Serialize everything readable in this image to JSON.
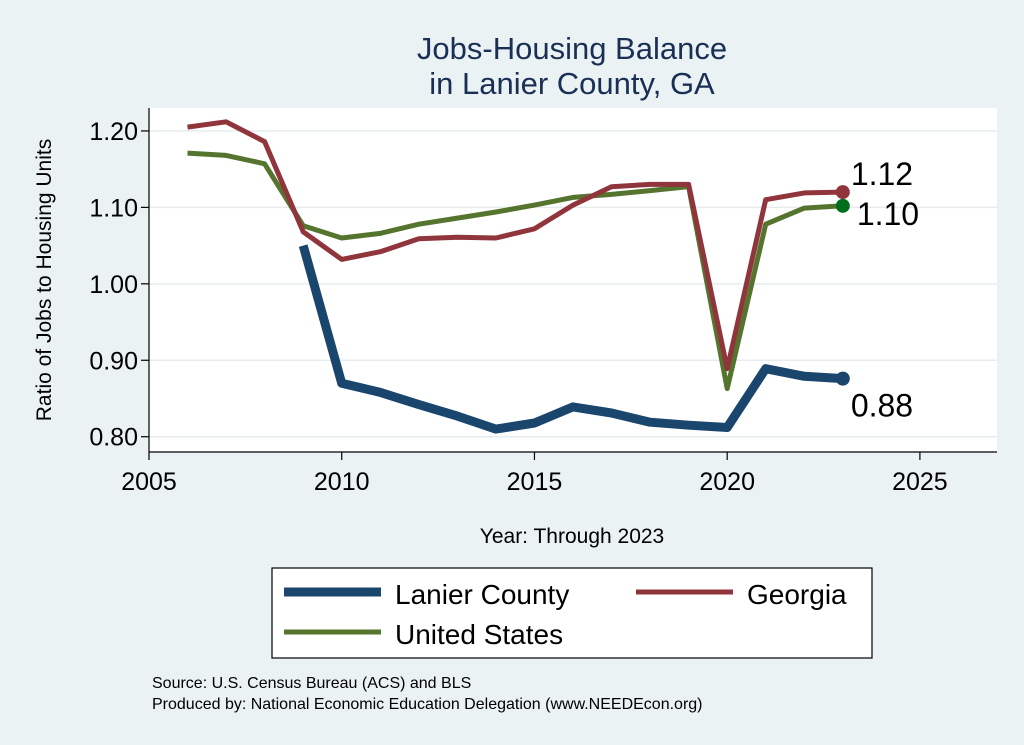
{
  "chart_data": {
    "type": "line",
    "title": [
      "Jobs-Housing Balance",
      "in Lanier County, GA"
    ],
    "xlabel": "Year: Through 2023",
    "ylabel": "Ratio of Jobs to Housing Units",
    "xlim": [
      2005,
      2027
    ],
    "ylim": [
      0.78,
      1.23
    ],
    "xticks": [
      2005,
      2010,
      2015,
      2020,
      2025
    ],
    "yticks": [
      0.8,
      0.9,
      1.0,
      1.1,
      1.2
    ],
    "ytick_labels": [
      "0.80",
      "0.90",
      "1.00",
      "1.10",
      "1.20"
    ],
    "grid": true,
    "legend_position": "bottom",
    "series": [
      {
        "name": "Lanier County",
        "color": "#1a466e",
        "line_width": 9,
        "x": [
          2009,
          2010,
          2011,
          2012,
          2013,
          2014,
          2015,
          2016,
          2017,
          2018,
          2019,
          2020,
          2021,
          2022,
          2023
        ],
        "values": [
          1.05,
          0.87,
          0.858,
          0.842,
          0.827,
          0.81,
          0.818,
          0.839,
          0.831,
          0.819,
          0.815,
          0.812,
          0.889,
          0.879,
          0.876
        ],
        "end_label": "0.88"
      },
      {
        "name": "Georgia",
        "color": "#90353b",
        "line_width": 5,
        "x": [
          2006,
          2007,
          2008,
          2009,
          2010,
          2011,
          2012,
          2013,
          2014,
          2015,
          2016,
          2017,
          2018,
          2019,
          2020,
          2021,
          2022,
          2023
        ],
        "values": [
          1.205,
          1.212,
          1.186,
          1.068,
          1.032,
          1.042,
          1.059,
          1.061,
          1.06,
          1.072,
          1.103,
          1.127,
          1.13,
          1.13,
          0.889,
          1.11,
          1.119,
          1.12
        ],
        "end_label": "1.12"
      },
      {
        "name": "United States",
        "color": "#55752f",
        "line_width": 5,
        "x": [
          2006,
          2007,
          2008,
          2009,
          2010,
          2011,
          2012,
          2013,
          2014,
          2015,
          2016,
          2017,
          2018,
          2019,
          2020,
          2021,
          2022,
          2023
        ],
        "values": [
          1.171,
          1.168,
          1.157,
          1.076,
          1.06,
          1.066,
          1.078,
          1.086,
          1.094,
          1.103,
          1.113,
          1.117,
          1.122,
          1.127,
          0.863,
          1.078,
          1.099,
          1.102
        ],
        "end_label": "1.10",
        "end_marker_color": "#006e1c"
      }
    ],
    "notes": [
      "Source: U.S. Census Bureau (ACS) and BLS",
      "Produced by: National Economic Education Delegation (www.NEEDEcon.org)"
    ]
  }
}
